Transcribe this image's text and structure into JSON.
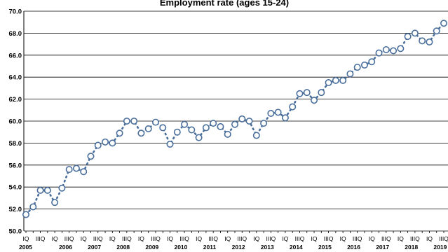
{
  "chart_data": {
    "type": "line",
    "title": "Employment rate (ages 15-24)",
    "xlabel": "",
    "ylabel": "",
    "ylim": [
      50.0,
      70.0
    ],
    "yticks": [
      "50.0",
      "52.0",
      "54.0",
      "56.0",
      "58.0",
      "60.0",
      "62.0",
      "64.0",
      "66.0",
      "68.0",
      "70.0"
    ],
    "quarter_labels": [
      "IQ",
      "IIIQ"
    ],
    "years": [
      "2005",
      "2006",
      "2007",
      "2008",
      "2009",
      "2010",
      "2011",
      "2012",
      "2013",
      "2014",
      "2015",
      "2016",
      "2017",
      "2018",
      "2019"
    ],
    "grid": true,
    "series": [
      {
        "marker": "circle-open",
        "line_style": "dotted",
        "color": "#4a6f9c",
        "values": [
          51.5,
          52.2,
          53.7,
          53.7,
          52.6,
          53.9,
          55.6,
          55.7,
          55.4,
          56.8,
          57.8,
          58.1,
          58.0,
          58.9,
          60.0,
          60.0,
          58.9,
          59.3,
          59.9,
          59.4,
          57.9,
          59.0,
          59.7,
          59.2,
          58.5,
          59.4,
          59.8,
          59.5,
          58.8,
          59.7,
          60.2,
          60.0,
          58.7,
          59.8,
          60.7,
          60.8,
          60.3,
          61.3,
          62.5,
          62.6,
          61.9,
          62.6,
          63.5,
          63.7,
          63.7,
          64.3,
          64.9,
          65.1,
          65.4,
          66.2,
          66.5,
          66.4,
          66.6,
          67.7,
          68.0,
          67.3,
          67.2,
          68.2,
          68.9
        ]
      }
    ]
  }
}
